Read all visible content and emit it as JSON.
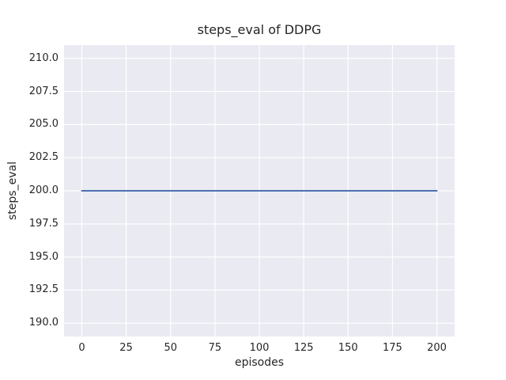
{
  "chart_data": {
    "type": "line",
    "title": "steps_eval of DDPG",
    "xlabel": "episodes",
    "ylabel": "steps_eval",
    "x_ticks": [
      0,
      25,
      50,
      75,
      100,
      125,
      150,
      175,
      200
    ],
    "x_tick_labels": [
      "0",
      "25",
      "50",
      "75",
      "100",
      "125",
      "150",
      "175",
      "200"
    ],
    "y_ticks": [
      190.0,
      192.5,
      195.0,
      197.5,
      200.0,
      202.5,
      205.0,
      207.5,
      210.0
    ],
    "y_tick_labels": [
      "190.0",
      "192.5",
      "195.0",
      "197.5",
      "200.0",
      "202.5",
      "205.0",
      "207.5",
      "210.0"
    ],
    "xlim": [
      -10,
      210
    ],
    "ylim": [
      189,
      211
    ],
    "grid": true,
    "legend": false,
    "plot_bg_color": "#eaeaf2",
    "grid_color": "#ffffff",
    "text_color": "#262626",
    "series": [
      {
        "name": "DDPG",
        "color": "#4c72b0",
        "x": [
          0,
          200
        ],
        "y": [
          200,
          200
        ]
      }
    ]
  }
}
